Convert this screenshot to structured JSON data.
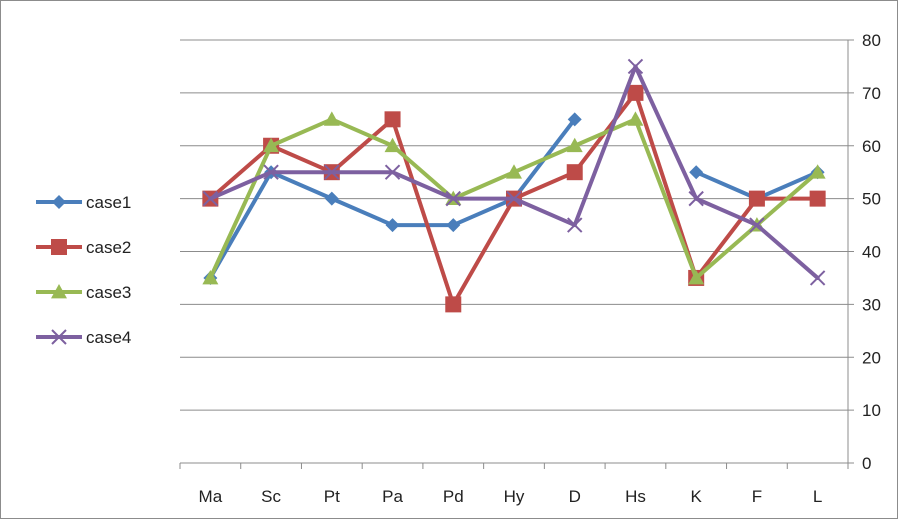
{
  "chart_data": {
    "type": "line",
    "categories": [
      "Ma",
      "Sc",
      "Pt",
      "Pa",
      "Pd",
      "Hy",
      "D",
      "Hs",
      "K",
      "F",
      "L"
    ],
    "y_axis": {
      "side": "right",
      "min": 0,
      "max": 80,
      "step": 10,
      "ticks": [
        "0",
        "10",
        "20",
        "30",
        "40",
        "50",
        "60",
        "70",
        "80"
      ]
    },
    "grid": "horizontal",
    "legend_position": "left",
    "series": [
      {
        "name": "case1",
        "color": "#4a7ebb",
        "marker": "diamond",
        "values": [
          35,
          55,
          50,
          45,
          45,
          50,
          65,
          null,
          55,
          50,
          55
        ]
      },
      {
        "name": "case2",
        "color": "#be4b48",
        "marker": "square",
        "values": [
          50,
          60,
          55,
          65,
          30,
          50,
          55,
          70,
          35,
          50,
          50
        ]
      },
      {
        "name": "case3",
        "color": "#98b954",
        "marker": "triangle",
        "values": [
          35,
          60,
          65,
          60,
          50,
          55,
          60,
          65,
          35,
          45,
          55
        ]
      },
      {
        "name": "case4",
        "color": "#7d60a0",
        "marker": "x",
        "values": [
          50,
          55,
          55,
          55,
          50,
          50,
          45,
          75,
          50,
          45,
          35
        ]
      }
    ]
  }
}
